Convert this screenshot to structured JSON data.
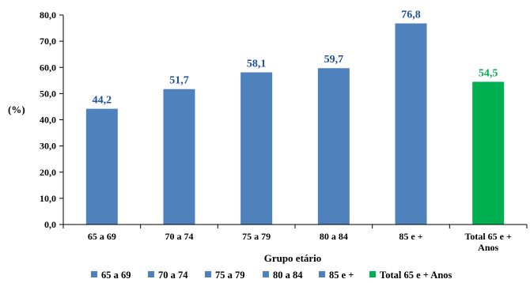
{
  "chart_data": {
    "type": "bar",
    "categories": [
      "65 a 69",
      "70 a 74",
      "75 a 79",
      "80 a 84",
      "85 e +",
      "Total 65 e + Anos"
    ],
    "category_lines": [
      [
        "65 a 69"
      ],
      [
        "70 a 74"
      ],
      [
        "75 a 79"
      ],
      [
        "80 a 84"
      ],
      [
        "85 e +"
      ],
      [
        "Total 65 e +",
        "Anos"
      ]
    ],
    "values": [
      44.2,
      51.7,
      58.1,
      59.7,
      76.8,
      54.5
    ],
    "data_labels": [
      "44,2",
      "51,7",
      "58,1",
      "59,7",
      "76,8",
      "54,5"
    ],
    "colors": [
      "#4f81bd",
      "#4f81bd",
      "#4f81bd",
      "#4f81bd",
      "#4f81bd",
      "#00b050"
    ],
    "label_colors": [
      "#1f4e9a",
      "#1f4e9a",
      "#1f4e9a",
      "#1f4e9a",
      "#1f4e9a",
      "#00b050"
    ],
    "ylim": [
      0,
      80
    ],
    "yticks": [
      0,
      10,
      20,
      30,
      40,
      50,
      60,
      70,
      80
    ],
    "ytick_labels": [
      "0,0",
      "10,0",
      "20,0",
      "30,0",
      "40,0",
      "50,0",
      "60,0",
      "70,0",
      "80,0"
    ],
    "ylabel": "(%)",
    "xlabel": "Grupo etário",
    "grid": false,
    "legend": {
      "position": "bottom",
      "entries": [
        {
          "label": "65 a 69",
          "color": "#4f81bd"
        },
        {
          "label": "70 a 74",
          "color": "#4f81bd"
        },
        {
          "label": "75 a 79",
          "color": "#4f81bd"
        },
        {
          "label": "80 a 84",
          "color": "#4f81bd"
        },
        {
          "label": "85 e +",
          "color": "#4f81bd"
        },
        {
          "label": "Total 65 e + Anos",
          "color": "#00b050"
        }
      ]
    }
  }
}
